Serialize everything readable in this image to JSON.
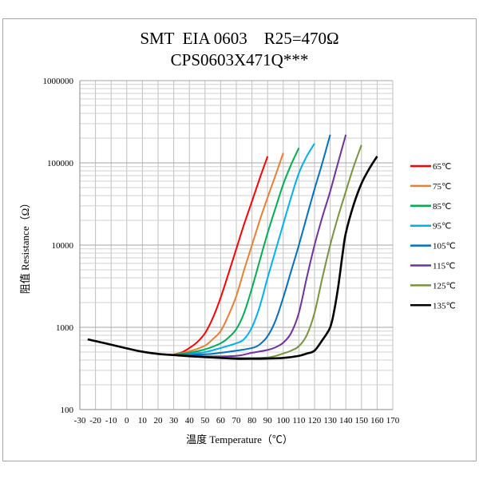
{
  "chart_data": {
    "type": "line",
    "title": "SMT  EIA 0603    R25=470Ω",
    "subtitle": "CPS0603X471Q***",
    "xlabel": "温度 Temperature（℃）",
    "ylabel": "阻值 Resistance（Ω）",
    "xlim": [
      -30,
      170
    ],
    "ylim": [
      100,
      1000000
    ],
    "yscale": "log",
    "grid": true,
    "legend_position": "right",
    "x_ticks": [
      "-30",
      "-20",
      "-10",
      "0",
      "10",
      "20",
      "30",
      "40",
      "50",
      "60",
      "70",
      "80",
      "90",
      "100",
      "110",
      "120",
      "130",
      "140",
      "150",
      "160",
      "170"
    ],
    "y_ticks": [
      "100",
      "1000",
      "10000",
      "100000",
      "1000000"
    ],
    "series": [
      {
        "name": "65℃",
        "color": "#ff0000",
        "points": [
          [
            30,
            467
          ],
          [
            35,
            495
          ],
          [
            40,
            560
          ],
          [
            45,
            660
          ],
          [
            50,
            850
          ],
          [
            55,
            1300
          ],
          [
            60,
            2300
          ],
          [
            65,
            4500
          ],
          [
            70,
            9000
          ],
          [
            75,
            18000
          ],
          [
            80,
            34000
          ],
          [
            85,
            65000
          ],
          [
            90,
            120000
          ]
        ]
      },
      {
        "name": "75℃",
        "color": "#ed7d31",
        "points": [
          [
            30,
            467
          ],
          [
            40,
            510
          ],
          [
            50,
            600
          ],
          [
            55,
            720
          ],
          [
            60,
            900
          ],
          [
            65,
            1400
          ],
          [
            70,
            2400
          ],
          [
            75,
            5000
          ],
          [
            80,
            10000
          ],
          [
            85,
            20000
          ],
          [
            90,
            38000
          ],
          [
            95,
            70000
          ],
          [
            100,
            132000
          ]
        ]
      },
      {
        "name": "85℃",
        "color": "#00b050",
        "points": [
          [
            30,
            467
          ],
          [
            40,
            490
          ],
          [
            50,
            540
          ],
          [
            60,
            640
          ],
          [
            65,
            750
          ],
          [
            70,
            950
          ],
          [
            75,
            1500
          ],
          [
            80,
            3000
          ],
          [
            85,
            6500
          ],
          [
            90,
            14000
          ],
          [
            95,
            28000
          ],
          [
            100,
            55000
          ],
          [
            105,
            95000
          ],
          [
            110,
            152000
          ]
        ]
      },
      {
        "name": "95℃",
        "color": "#00b0f0",
        "points": [
          [
            30,
            467
          ],
          [
            40,
            475
          ],
          [
            50,
            500
          ],
          [
            60,
            560
          ],
          [
            70,
            640
          ],
          [
            75,
            720
          ],
          [
            80,
            1000
          ],
          [
            85,
            1800
          ],
          [
            90,
            4000
          ],
          [
            95,
            8500
          ],
          [
            100,
            18000
          ],
          [
            105,
            38000
          ],
          [
            110,
            75000
          ],
          [
            115,
            120000
          ],
          [
            120,
            172000
          ]
        ]
      },
      {
        "name": "105℃",
        "color": "#0070c0",
        "points": [
          [
            30,
            467
          ],
          [
            50,
            470
          ],
          [
            60,
            490
          ],
          [
            70,
            520
          ],
          [
            80,
            560
          ],
          [
            85,
            620
          ],
          [
            90,
            780
          ],
          [
            95,
            1200
          ],
          [
            100,
            2300
          ],
          [
            105,
            4800
          ],
          [
            110,
            10000
          ],
          [
            115,
            22000
          ],
          [
            120,
            48000
          ],
          [
            125,
            100000
          ],
          [
            130,
            220000
          ]
        ]
      },
      {
        "name": "115℃",
        "color": "#7030a0",
        "points": [
          [
            30,
            467
          ],
          [
            50,
            445
          ],
          [
            70,
            450
          ],
          [
            80,
            490
          ],
          [
            90,
            530
          ],
          [
            95,
            570
          ],
          [
            100,
            650
          ],
          [
            105,
            850
          ],
          [
            110,
            1500
          ],
          [
            115,
            4000
          ],
          [
            120,
            10000
          ],
          [
            125,
            22000
          ],
          [
            130,
            45000
          ],
          [
            135,
            100000
          ],
          [
            140,
            220000
          ]
        ]
      },
      {
        "name": "125℃",
        "color": "#77933c",
        "points": [
          [
            30,
            467
          ],
          [
            50,
            440
          ],
          [
            70,
            425
          ],
          [
            90,
            430
          ],
          [
            100,
            480
          ],
          [
            105,
            520
          ],
          [
            110,
            590
          ],
          [
            115,
            800
          ],
          [
            120,
            1500
          ],
          [
            125,
            4000
          ],
          [
            130,
            10000
          ],
          [
            135,
            22000
          ],
          [
            140,
            45000
          ],
          [
            145,
            90000
          ],
          [
            150,
            165000
          ]
        ]
      },
      {
        "name": "135℃",
        "color": "#000000",
        "points": [
          [
            -25,
            714
          ],
          [
            -20,
            680
          ],
          [
            -10,
            615
          ],
          [
            0,
            555
          ],
          [
            10,
            505
          ],
          [
            20,
            475
          ],
          [
            30,
            460
          ],
          [
            40,
            445
          ],
          [
            50,
            434
          ],
          [
            60,
            425
          ],
          [
            70,
            415
          ],
          [
            80,
            415
          ],
          [
            90,
            418
          ],
          [
            100,
            425
          ],
          [
            110,
            450
          ],
          [
            115,
            480
          ],
          [
            120,
            520
          ],
          [
            125,
            700
          ],
          [
            128,
            850
          ],
          [
            130,
            1000
          ],
          [
            132,
            1400
          ],
          [
            135,
            3000
          ],
          [
            138,
            8000
          ],
          [
            140,
            14000
          ],
          [
            145,
            31000
          ],
          [
            150,
            56000
          ],
          [
            155,
            85000
          ],
          [
            160,
            120000
          ]
        ]
      }
    ]
  }
}
